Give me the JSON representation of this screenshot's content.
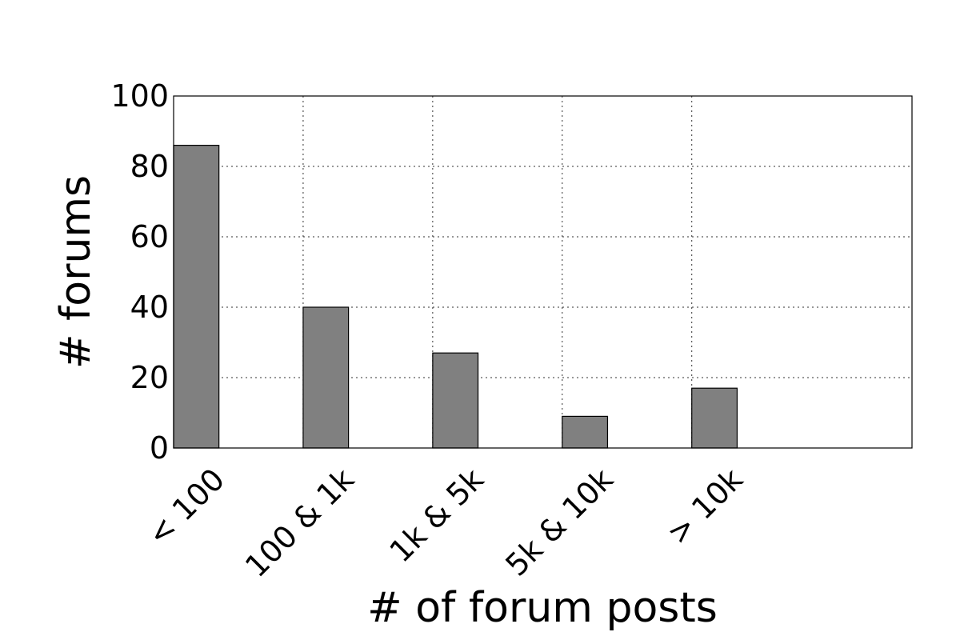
{
  "chart_data": {
    "type": "bar",
    "categories": [
      "< 100",
      "100 & 1k",
      "1k & 5k",
      "5k & 10k",
      "> 10k"
    ],
    "values": [
      86,
      40,
      27,
      9,
      17
    ],
    "title": "",
    "xlabel": "# of forum posts",
    "ylabel": "# forums",
    "ylim": [
      0,
      100
    ],
    "yticks": [
      0,
      20,
      40,
      60,
      80,
      100
    ],
    "grid": true,
    "bar_color": "#808080"
  }
}
